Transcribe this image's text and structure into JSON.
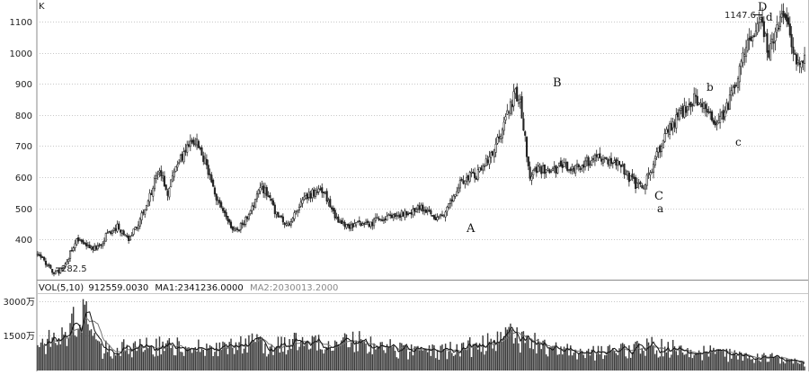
{
  "chart_data": [
    {
      "type": "candlestick",
      "axis_unit": "K",
      "y_ticks": [
        400,
        500,
        600,
        700,
        800,
        900,
        1000,
        1100
      ],
      "ylim": [
        270,
        1170
      ],
      "annotations": {
        "low_value": "282.5",
        "high_value": "1147.6",
        "waves": [
          "A",
          "B",
          "C",
          "a",
          "b",
          "c",
          "D",
          "d"
        ]
      },
      "path": [
        [
          0,
          350
        ],
        [
          6,
          320
        ],
        [
          10,
          290
        ],
        [
          14,
          300
        ],
        [
          18,
          330
        ],
        [
          24,
          405
        ],
        [
          29,
          390
        ],
        [
          36,
          365
        ],
        [
          42,
          410
        ],
        [
          49,
          440
        ],
        [
          56,
          400
        ],
        [
          62,
          455
        ],
        [
          68,
          520
        ],
        [
          72,
          585
        ],
        [
          76,
          615
        ],
        [
          80,
          550
        ],
        [
          86,
          640
        ],
        [
          92,
          690
        ],
        [
          97,
          720
        ],
        [
          103,
          650
        ],
        [
          108,
          560
        ],
        [
          114,
          490
        ],
        [
          120,
          425
        ],
        [
          126,
          445
        ],
        [
          132,
          500
        ],
        [
          138,
          570
        ],
        [
          143,
          525
        ],
        [
          148,
          470
        ],
        [
          154,
          445
        ],
        [
          160,
          505
        ],
        [
          166,
          540
        ],
        [
          172,
          555
        ],
        [
          177,
          545
        ],
        [
          182,
          480
        ],
        [
          186,
          450
        ],
        [
          192,
          440
        ],
        [
          198,
          455
        ],
        [
          205,
          450
        ],
        [
          212,
          470
        ],
        [
          220,
          475
        ],
        [
          228,
          485
        ],
        [
          236,
          500
        ],
        [
          240,
          490
        ],
        [
          244,
          465
        ],
        [
          248,
          475
        ],
        [
          254,
          515
        ],
        [
          260,
          580
        ],
        [
          265,
          600
        ],
        [
          270,
          605
        ],
        [
          276,
          650
        ],
        [
          282,
          700
        ],
        [
          286,
          760
        ],
        [
          290,
          820
        ],
        [
          294,
          870
        ],
        [
          297,
          840
        ],
        [
          300,
          720
        ],
        [
          303,
          605
        ],
        [
          308,
          630
        ],
        [
          315,
          610
        ],
        [
          322,
          640
        ],
        [
          330,
          620
        ],
        [
          338,
          650
        ],
        [
          346,
          660
        ],
        [
          354,
          650
        ],
        [
          360,
          630
        ],
        [
          364,
          600
        ],
        [
          368,
          575
        ],
        [
          372,
          570
        ],
        [
          376,
          600
        ],
        [
          382,
          680
        ],
        [
          388,
          750
        ],
        [
          394,
          790
        ],
        [
          400,
          830
        ],
        [
          405,
          855
        ],
        [
          410,
          840
        ],
        [
          414,
          790
        ],
        [
          418,
          765
        ],
        [
          422,
          800
        ],
        [
          427,
          860
        ],
        [
          432,
          950
        ],
        [
          436,
          1040
        ],
        [
          440,
          1060
        ],
        [
          444,
          1110
        ],
        [
          447,
          1060
        ],
        [
          450,
          990
        ],
        [
          453,
          1050
        ],
        [
          457,
          1090
        ],
        [
          460,
          1120
        ],
        [
          463,
          1060
        ],
        [
          466,
          980
        ],
        [
          469,
          970
        ],
        [
          472,
          1000
        ]
      ]
    },
    {
      "type": "bar",
      "header": {
        "name": "VOL(5,10)",
        "vol": "912559.0030",
        "ma1": "MA1:2341236.0000",
        "ma2": "MA2:2030013.2000"
      },
      "y_ticks": [
        "3000万",
        "1500万"
      ],
      "tick_values": [
        3000,
        1500
      ],
      "ylim": [
        0,
        3300
      ],
      "levels": [
        [
          0,
          1200
        ],
        [
          10,
          1250
        ],
        [
          20,
          1550
        ],
        [
          23,
          2300
        ],
        [
          26,
          3000
        ],
        [
          29,
          2600
        ],
        [
          32,
          1600
        ],
        [
          38,
          900
        ],
        [
          60,
          1000
        ],
        [
          80,
          1050
        ],
        [
          95,
          950
        ],
        [
          110,
          850
        ],
        [
          130,
          1150
        ],
        [
          150,
          1050
        ],
        [
          170,
          1250
        ],
        [
          190,
          1150
        ],
        [
          200,
          1300
        ],
        [
          215,
          950
        ],
        [
          240,
          750
        ],
        [
          255,
          900
        ],
        [
          280,
          1150
        ],
        [
          290,
          1450
        ],
        [
          300,
          1300
        ],
        [
          315,
          900
        ],
        [
          340,
          750
        ],
        [
          360,
          850
        ],
        [
          375,
          1050
        ],
        [
          395,
          900
        ],
        [
          420,
          700
        ],
        [
          440,
          600
        ],
        [
          455,
          500
        ],
        [
          472,
          300
        ]
      ],
      "colors": {
        "bar": "#3a3a3a",
        "ma_fast": "#111111",
        "ma_slow": "#777777"
      }
    }
  ]
}
